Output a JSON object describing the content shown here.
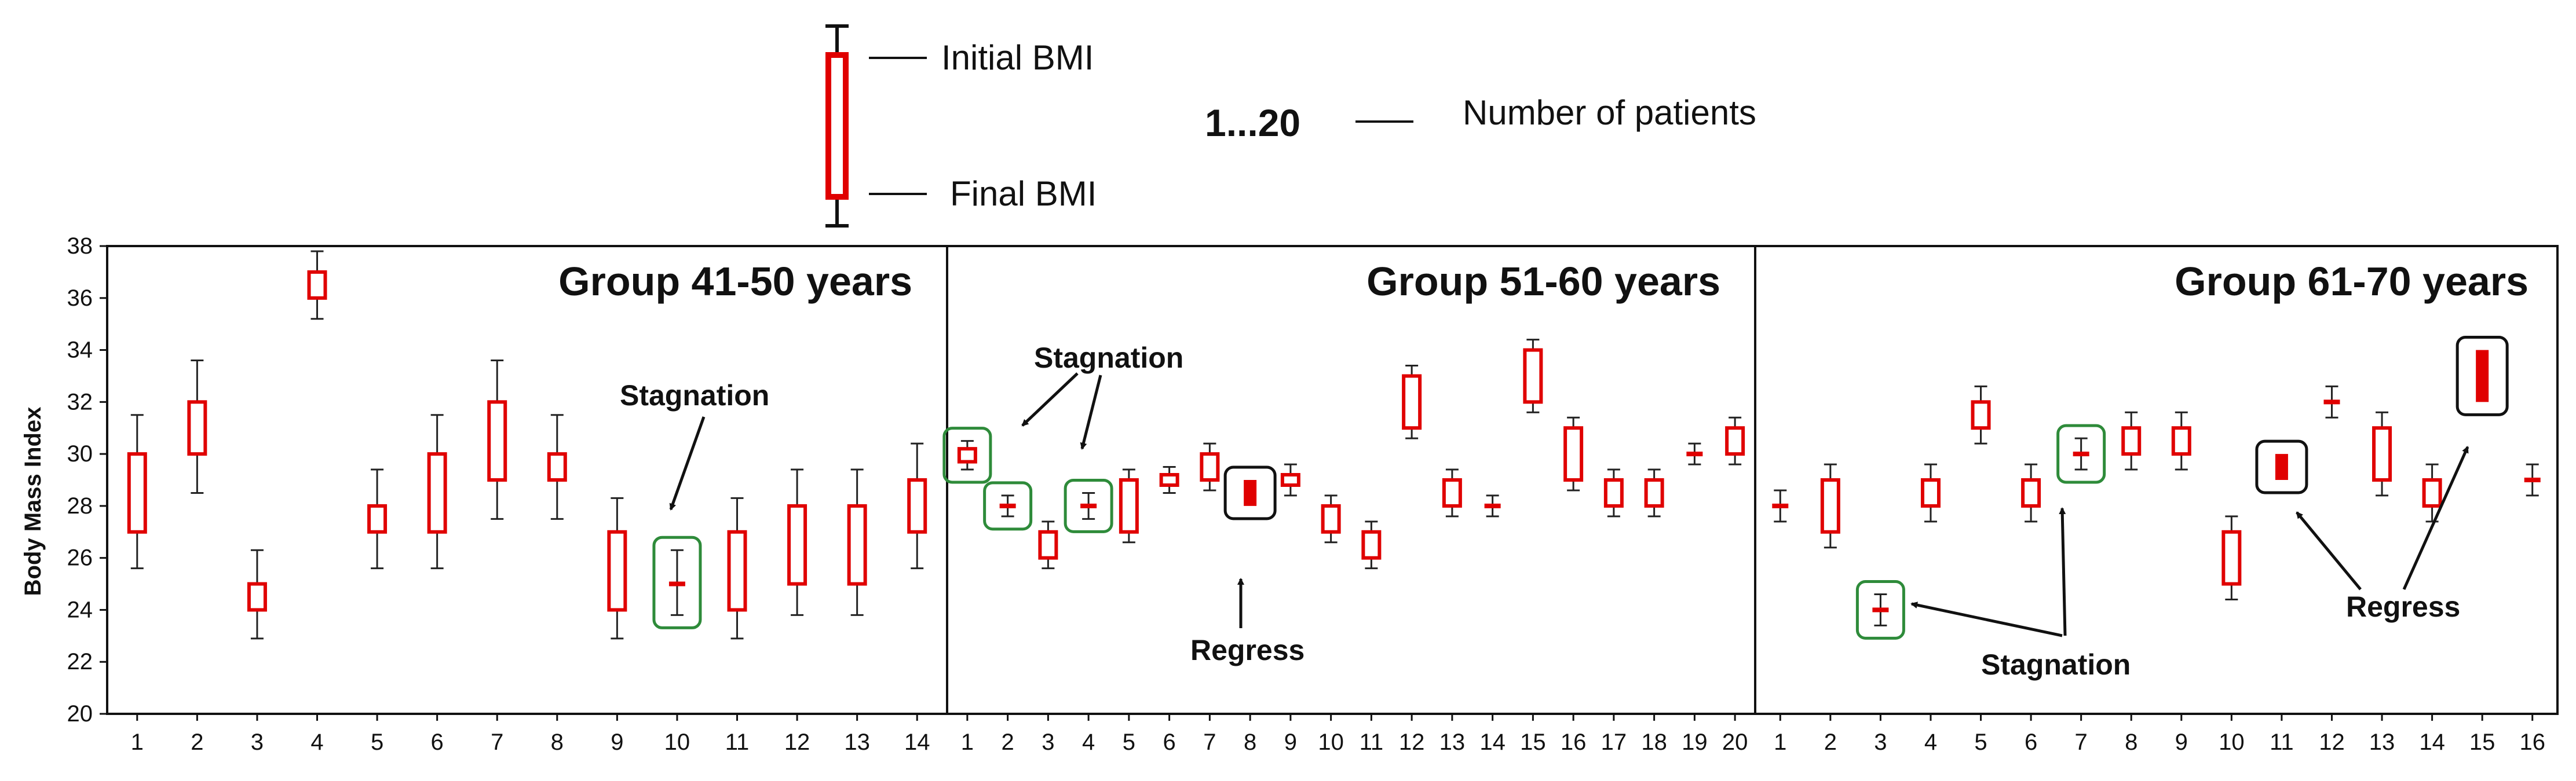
{
  "chart_data": {
    "type": "box",
    "ylabel": "Body Mass Index",
    "ylim": [
      20,
      38
    ],
    "yticks": [
      20,
      22,
      24,
      26,
      28,
      30,
      32,
      34,
      36,
      38
    ],
    "colors": {
      "box": "#e00000",
      "whisker": "#222222",
      "stagnation": "#2e8b3a",
      "regress": "#111111",
      "arrow": "#111111"
    },
    "legend": {
      "top_label": "Initial BMI",
      "bottom_label": "Final BMI",
      "count_symbol": "1...20",
      "count_label": "Number of patients"
    },
    "groups": [
      {
        "title": "Group 41-50 years",
        "x_labels": [
          "1",
          "2",
          "3",
          "4",
          "5",
          "6",
          "7",
          "8",
          "9",
          "10",
          "11",
          "12",
          "13",
          "14"
        ],
        "series": [
          {
            "initial": 30,
            "final": 27,
            "max": 31.5,
            "min": 25.6
          },
          {
            "initial": 32,
            "final": 30,
            "max": 33.6,
            "min": 28.5
          },
          {
            "initial": 25,
            "final": 24,
            "max": 26.3,
            "min": 22.9
          },
          {
            "initial": 37,
            "final": 36,
            "max": 37.8,
            "min": 35.2
          },
          {
            "initial": 28,
            "final": 27,
            "max": 29.4,
            "min": 25.6
          },
          {
            "initial": 30,
            "final": 27,
            "max": 31.5,
            "min": 25.6
          },
          {
            "initial": 32,
            "final": 29,
            "max": 33.6,
            "min": 27.5
          },
          {
            "initial": 30,
            "final": 29,
            "max": 31.5,
            "min": 27.5
          },
          {
            "initial": 27,
            "final": 24,
            "max": 28.3,
            "min": 22.9
          },
          {
            "initial": 25,
            "final": 25,
            "max": 26.3,
            "min": 23.8
          },
          {
            "initial": 27,
            "final": 24,
            "max": 28.3,
            "min": 22.9
          },
          {
            "initial": 28,
            "final": 25,
            "max": 29.4,
            "min": 23.8
          },
          {
            "initial": 28,
            "final": 25,
            "max": 29.4,
            "min": 23.8
          },
          {
            "initial": 29,
            "final": 27,
            "max": 30.4,
            "min": 25.6
          }
        ],
        "annotations": [
          {
            "label": "Stagnation",
            "kind": "stagnation",
            "boxes": [
              10
            ]
          }
        ]
      },
      {
        "title": "Group 51-60 years",
        "x_labels": [
          "1",
          "2",
          "3",
          "4",
          "5",
          "6",
          "7",
          "8",
          "9",
          "10",
          "11",
          "12",
          "13",
          "14",
          "15",
          "16",
          "17",
          "18",
          "19",
          "20"
        ],
        "series": [
          {
            "initial": 30.2,
            "final": 29.7,
            "max": 30.5,
            "min": 29.4
          },
          {
            "initial": 28,
            "final": 28,
            "max": 28.4,
            "min": 27.6
          },
          {
            "initial": 27,
            "final": 26,
            "max": 27.4,
            "min": 25.6
          },
          {
            "initial": 28,
            "final": 28,
            "max": 28.5,
            "min": 27.5
          },
          {
            "initial": 29,
            "final": 27,
            "max": 29.4,
            "min": 26.6
          },
          {
            "initial": 29.2,
            "final": 28.8,
            "max": 29.5,
            "min": 28.5
          },
          {
            "initial": 30,
            "final": 29,
            "max": 30.4,
            "min": 28.6
          },
          {
            "initial": 29,
            "final": 28,
            "max": null,
            "min": null,
            "filled": true
          },
          {
            "initial": 29.2,
            "final": 28.8,
            "max": 29.6,
            "min": 28.4
          },
          {
            "initial": 28,
            "final": 27,
            "max": 28.4,
            "min": 26.6
          },
          {
            "initial": 27,
            "final": 26,
            "max": 27.4,
            "min": 25.6
          },
          {
            "initial": 33,
            "final": 31,
            "max": 33.4,
            "min": 30.6
          },
          {
            "initial": 29,
            "final": 28,
            "max": 29.4,
            "min": 27.6
          },
          {
            "initial": 28,
            "final": 28,
            "max": 28.4,
            "min": 27.6
          },
          {
            "initial": 34,
            "final": 32,
            "max": 34.4,
            "min": 31.6
          },
          {
            "initial": 31,
            "final": 29,
            "max": 31.4,
            "min": 28.6
          },
          {
            "initial": 29,
            "final": 28,
            "max": 29.4,
            "min": 27.6
          },
          {
            "initial": 29,
            "final": 28,
            "max": 29.4,
            "min": 27.6
          },
          {
            "initial": 30,
            "final": 30,
            "max": 30.4,
            "min": 29.6
          },
          {
            "initial": 31,
            "final": 30,
            "max": 31.4,
            "min": 29.6
          }
        ],
        "annotations": [
          {
            "label": "Stagnation",
            "kind": "stagnation",
            "boxes": [
              1,
              2
            ]
          },
          {
            "label": "Stagnation",
            "kind": "stagnation",
            "boxes": [
              4
            ]
          },
          {
            "label": "Regress",
            "kind": "regress",
            "boxes": [
              8
            ]
          }
        ]
      },
      {
        "title": "Group 61-70 years",
        "x_labels": [
          "1",
          "2",
          "3",
          "4",
          "5",
          "6",
          "7",
          "8",
          "9",
          "10",
          "11",
          "12",
          "13",
          "14",
          "15",
          "16"
        ],
        "series": [
          {
            "initial": 28,
            "final": 28,
            "max": 28.6,
            "min": 27.4
          },
          {
            "initial": 29,
            "final": 27,
            "max": 29.6,
            "min": 26.4
          },
          {
            "initial": 24,
            "final": 24,
            "max": 24.6,
            "min": 23.4
          },
          {
            "initial": 29,
            "final": 28,
            "max": 29.6,
            "min": 27.4
          },
          {
            "initial": 32,
            "final": 31,
            "max": 32.6,
            "min": 30.4
          },
          {
            "initial": 29,
            "final": 28,
            "max": 29.6,
            "min": 27.4
          },
          {
            "initial": 30,
            "final": 30,
            "max": 30.6,
            "min": 29.4
          },
          {
            "initial": 31,
            "final": 30,
            "max": 31.6,
            "min": 29.4
          },
          {
            "initial": 31,
            "final": 30,
            "max": 31.6,
            "min": 29.4
          },
          {
            "initial": 27,
            "final": 25,
            "max": 27.6,
            "min": 24.4
          },
          {
            "initial": 30,
            "final": 29,
            "max": null,
            "min": null,
            "filled": true
          },
          {
            "initial": 32,
            "final": 32,
            "max": 32.6,
            "min": 31.4
          },
          {
            "initial": 31,
            "final": 29,
            "max": 31.6,
            "min": 28.4
          },
          {
            "initial": 29,
            "final": 28,
            "max": 29.6,
            "min": 27.4
          },
          {
            "initial": 34,
            "final": 32,
            "max": null,
            "min": null,
            "filled": true
          },
          {
            "initial": 29,
            "final": 29,
            "max": 29.6,
            "min": 28.4
          }
        ],
        "annotations": [
          {
            "label": "Stagnation",
            "kind": "stagnation",
            "boxes": [
              3,
              7
            ]
          },
          {
            "label": "Regress",
            "kind": "regress",
            "boxes": [
              11,
              15
            ]
          }
        ]
      }
    ]
  }
}
